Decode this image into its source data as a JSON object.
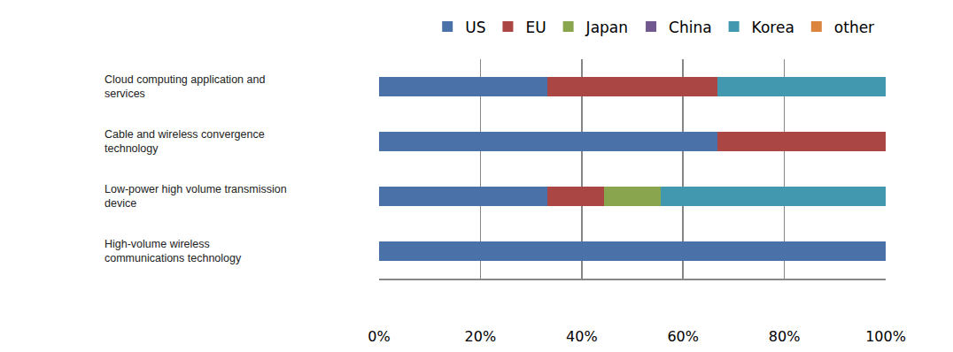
{
  "chart_data": {
    "type": "bar",
    "orientation": "horizontal",
    "stacked": true,
    "categories": [
      "Cloud computing application and services",
      "Cable and wireless convergence technology",
      "Low-power high volume transmission device",
      "High-volume wireless communications technology"
    ],
    "series": [
      {
        "name": "US",
        "color": "#4a72a8",
        "values": [
          33.3,
          66.7,
          33.3,
          100
        ]
      },
      {
        "name": "EU",
        "color": "#aa4643",
        "values": [
          33.4,
          33.3,
          11.1,
          0
        ]
      },
      {
        "name": "Japan",
        "color": "#89a54e",
        "values": [
          0,
          0,
          11.2,
          0
        ]
      },
      {
        "name": "China",
        "color": "#71588f",
        "values": [
          0,
          0,
          0,
          0
        ]
      },
      {
        "name": "Korea",
        "color": "#4198af",
        "values": [
          33.3,
          0,
          44.4,
          0
        ]
      },
      {
        "name": "other",
        "color": "#db843d",
        "values": [
          0,
          0,
          0,
          0
        ]
      }
    ],
    "xlim": [
      0,
      100
    ],
    "xticks": [
      {
        "value": 0,
        "label": "0%"
      },
      {
        "value": 20,
        "label": "20%"
      },
      {
        "value": 40,
        "label": "40%"
      },
      {
        "value": 60,
        "label": "60%"
      },
      {
        "value": 80,
        "label": "80%"
      },
      {
        "value": 100,
        "label": "100%"
      }
    ],
    "grid": true,
    "legend": "top"
  }
}
